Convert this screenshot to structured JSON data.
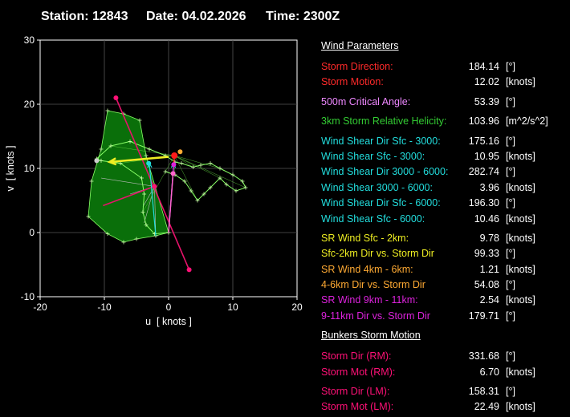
{
  "header": {
    "station": "Station: 12843",
    "date": "Date: 04.02.2026",
    "time": "Time: 2300Z"
  },
  "params": {
    "sections": [
      {
        "title": "Wind Parameters",
        "rows": [
          {
            "label": "Storm Direction:",
            "value": "184.14",
            "unit": "[°]",
            "color": "#ff2a2a"
          },
          {
            "label": "Storm Motion:",
            "value": "12.02",
            "unit": "[knots]",
            "color": "#ff2a2a",
            "gap_after": true
          },
          {
            "label": "500m Critical Angle:",
            "value": "53.39",
            "unit": "[°]",
            "color": "#ee88ff",
            "gap_after": true
          },
          {
            "label": "3km Storm Relative Helicity:",
            "value": "103.96",
            "unit": "[m^2/s^2]",
            "color": "#33cc33",
            "gap_after": true
          },
          {
            "label": "Wind Shear Dir Sfc - 3000:",
            "value": "175.16",
            "unit": "[°]",
            "color": "#22dddd"
          },
          {
            "label": "Wind Shear Sfc - 3000:",
            "value": "10.95",
            "unit": "[knots]",
            "color": "#22dddd"
          },
          {
            "label": "Wind Shear Dir 3000 - 6000:",
            "value": "282.74",
            "unit": "[°]",
            "color": "#22dddd"
          },
          {
            "label": "Wind Shear 3000 - 6000:",
            "value": "3.96",
            "unit": "[knots]",
            "color": "#22dddd"
          },
          {
            "label": "Wind Shear Dir Sfc - 6000:",
            "value": "196.30",
            "unit": "[°]",
            "color": "#22dddd"
          },
          {
            "label": "Wind Shear Sfc - 6000:",
            "value": "10.46",
            "unit": "[knots]",
            "color": "#22dddd",
            "gap_after": true
          },
          {
            "label": "SR Wind Sfc - 2km:",
            "value": "9.78",
            "unit": "[knots]",
            "color": "#eeee22"
          },
          {
            "label": "Sfc-2km Dir vs. Storm Dir",
            "value": "99.33",
            "unit": "[°]",
            "color": "#eeee22"
          },
          {
            "label": "SR Wind 4km - 6km:",
            "value": "1.21",
            "unit": "[knots]",
            "color": "#ffaa33"
          },
          {
            "label": "4-6km Dir vs. Storm Dir",
            "value": "54.08",
            "unit": "[°]",
            "color": "#ffaa33"
          },
          {
            "label": "SR Wind 9km - 11km:",
            "value": "2.54",
            "unit": "[knots]",
            "color": "#dd22dd"
          },
          {
            "label": "9-11km Dir vs. Storm Dir",
            "value": "179.71",
            "unit": "[°]",
            "color": "#dd22dd",
            "gap_after": true
          }
        ]
      },
      {
        "title": "Bunkers Storm Motion",
        "rows": [
          {
            "label": "Storm Dir (RM):",
            "value": "331.68",
            "unit": "[°]",
            "color": "#ff1177"
          },
          {
            "label": "Storm Mot (RM):",
            "value": "6.70",
            "unit": "[knots]",
            "color": "#ff1177",
            "gap_after": true
          },
          {
            "label": "Storm Dir (LM):",
            "value": "158.31",
            "unit": "[°]",
            "color": "#ff1177"
          },
          {
            "label": "Storm Mot (LM):",
            "value": "22.49",
            "unit": "[knots]",
            "color": "#ff1177"
          }
        ]
      }
    ]
  },
  "chart_data": {
    "type": "scatter",
    "xlabel": "u  [ knots ]",
    "ylabel": "v  [ knots ]",
    "xlim": [
      -20,
      20
    ],
    "ylim": [
      -10,
      30
    ],
    "x_ticks": [
      -20,
      -10,
      0,
      10,
      20
    ],
    "y_ticks": [
      -10,
      0,
      10,
      20,
      30
    ],
    "grid": true,
    "colors": {
      "hodograph_fill": "#0a6f0a",
      "hodograph_line": "#88ff66",
      "storm": "#ff1a1a",
      "srh": "#ff66aa",
      "shear": "#22dddd",
      "sr_low": "#eeee22",
      "sr_mid": "#ffaa33",
      "sr_high": "#dd22dd",
      "bunkers": "#e6136b"
    },
    "hodograph": [
      {
        "x": 0.0,
        "y": 0.0
      },
      {
        "x": -2.2,
        "y": -0.2
      },
      {
        "x": -3.5,
        "y": 1.2
      },
      {
        "x": -4.0,
        "y": 3.2
      },
      {
        "x": -3.8,
        "y": 6.0
      },
      {
        "x": -4.2,
        "y": 8.5
      },
      {
        "x": -7.5,
        "y": 10.8
      },
      {
        "x": -10.5,
        "y": 11.2
      },
      {
        "x": -11.2,
        "y": 11.5
      },
      {
        "x": -9.0,
        "y": 13.5
      },
      {
        "x": -6.0,
        "y": 14.2
      },
      {
        "x": -3.0,
        "y": 13.0
      },
      {
        "x": -0.5,
        "y": 12.0
      },
      {
        "x": 1.0,
        "y": 11.0
      },
      {
        "x": 2.0,
        "y": 10.8
      },
      {
        "x": 3.8,
        "y": 10.2
      },
      {
        "x": 5.0,
        "y": 10.5
      },
      {
        "x": 6.5,
        "y": 10.8
      },
      {
        "x": 8.0,
        "y": 10.0
      },
      {
        "x": 10.0,
        "y": 9.0
      },
      {
        "x": 11.5,
        "y": 8.0
      },
      {
        "x": 12.0,
        "y": 7.0
      },
      {
        "x": 10.5,
        "y": 6.5
      },
      {
        "x": 9.0,
        "y": 7.5
      },
      {
        "x": 8.0,
        "y": 8.5
      },
      {
        "x": 6.5,
        "y": 7.0
      },
      {
        "x": 5.5,
        "y": 6.0
      },
      {
        "x": 4.5,
        "y": 5.0
      },
      {
        "x": 3.5,
        "y": 6.5
      },
      {
        "x": 2.5,
        "y": 8.0
      },
      {
        "x": 1.0,
        "y": 9.0
      },
      {
        "x": -0.5,
        "y": 9.5
      }
    ],
    "hodograph_fill": [
      {
        "x": 0.0,
        "y": 0.0
      },
      {
        "x": -2.0,
        "y": -0.5
      },
      {
        "x": -5.0,
        "y": -1.0
      },
      {
        "x": -7.0,
        "y": -1.5
      },
      {
        "x": -9.5,
        "y": -0.2
      },
      {
        "x": -12.5,
        "y": 2.5
      },
      {
        "x": -12.0,
        "y": 8.0
      },
      {
        "x": -10.5,
        "y": 13.0
      },
      {
        "x": -9.5,
        "y": 19.0
      },
      {
        "x": -7.0,
        "y": 18.5
      },
      {
        "x": -4.5,
        "y": 17.5
      },
      {
        "x": -3.5,
        "y": 12.0
      }
    ],
    "lower_spokes": [
      {
        "x": -2.0,
        "y": -0.5
      },
      {
        "x": -3.8,
        "y": 1.5
      },
      {
        "x": -4.0,
        "y": 4.0
      },
      {
        "x": -6.0,
        "y": 6.0
      },
      {
        "x": -10.5,
        "y": 8.5
      }
    ],
    "srh_lines": [
      {
        "x1": -8.2,
        "y1": 21.0,
        "x2": 3.2,
        "y2": -5.8
      },
      {
        "x1": -10.2,
        "y1": 4.2,
        "x2": -2.2,
        "y2": 7.2
      }
    ],
    "bunkers_rm": {
      "x": 3.2,
      "y": -5.8
    },
    "bunkers_lm": {
      "x": -8.2,
      "y": 21.0
    },
    "mean_wind": {
      "x": -2.2,
      "y": 7.2
    },
    "storm_motion": {
      "x": 0.9,
      "y": 12.0
    },
    "vectors": [
      {
        "name": "sr_sfc_2km",
        "x1": 0.0,
        "y1": 11.8,
        "x2": -9.2,
        "y2": 11.0,
        "color": "#eeee22"
      },
      {
        "name": "shear_sfc_6000",
        "x1": 0.0,
        "y1": 0.0,
        "x2": 0.8,
        "y2": 10.8,
        "color": "#22dddd"
      },
      {
        "name": "shear_sfc_3000",
        "x1": -2.0,
        "y1": -0.5,
        "x2": -3.0,
        "y2": 10.8,
        "color": "#22dddd"
      }
    ],
    "markers": [
      {
        "x": 0.9,
        "y": 12.0,
        "color": "#ff1a1a",
        "r": 4
      },
      {
        "x": 1.8,
        "y": 12.6,
        "color": "#ffaa33",
        "r": 3
      },
      {
        "x": 0.8,
        "y": 10.6,
        "color": "#dd22dd",
        "r": 3
      },
      {
        "x": 0.7,
        "y": 9.2,
        "color": "#ff66cc",
        "r": 3
      },
      {
        "x": -3.1,
        "y": 10.8,
        "color": "#22dddd",
        "r": 3
      },
      {
        "x": -11.2,
        "y": 11.2,
        "color": "#cccccc",
        "r": 3
      },
      {
        "x": 3.2,
        "y": -5.8,
        "color": "#ff1177",
        "r": 3
      },
      {
        "x": -8.2,
        "y": 21.0,
        "color": "#ff1177",
        "r": 3
      },
      {
        "x": -2.2,
        "y": 7.2,
        "color": "#ff1177",
        "r": 3
      }
    ]
  }
}
